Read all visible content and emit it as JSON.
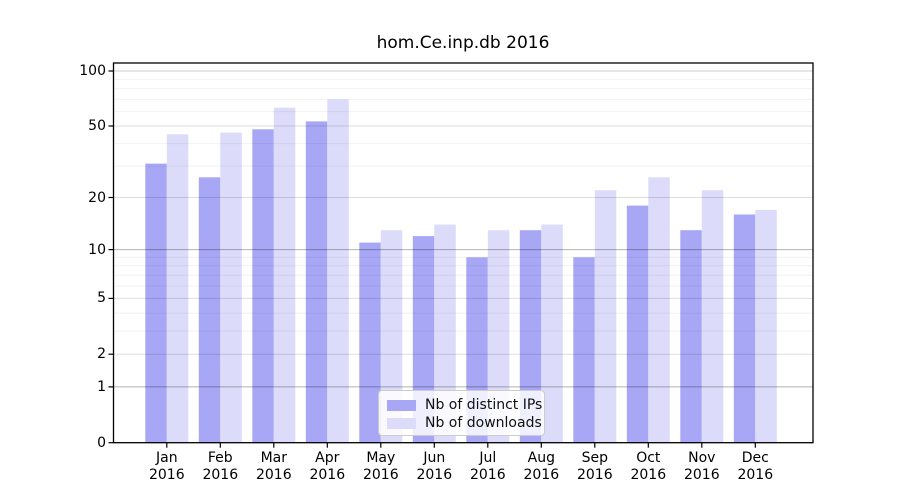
{
  "page": {
    "background": "#ffffff"
  },
  "chart_data": {
    "type": "bar",
    "title": "hom.Ce.inp.db 2016",
    "categories": [
      "Jan",
      "Feb",
      "Mar",
      "Apr",
      "May",
      "Jun",
      "Jul",
      "Aug",
      "Sep",
      "Oct",
      "Nov",
      "Dec"
    ],
    "category_year": "2016",
    "series": [
      {
        "name": "Nb of distinct IPs",
        "color": "#a7a7f5",
        "values": [
          31,
          26,
          48,
          53,
          11,
          12,
          9,
          13,
          9,
          18,
          13,
          16
        ]
      },
      {
        "name": "Nb of downloads",
        "color": "#dcdcfa",
        "values": [
          45,
          46,
          63,
          70,
          13,
          14,
          13,
          14,
          22,
          26,
          22,
          17
        ]
      }
    ],
    "xlabel": "",
    "ylabel": "",
    "yscale": "log1p",
    "ylim": [
      0,
      110
    ],
    "y_tick_labels": [
      "0",
      "1",
      "2",
      "5",
      "10",
      "20",
      "50",
      "100"
    ],
    "y_major_ticks": [
      0,
      1,
      2,
      5,
      10,
      20,
      50,
      100
    ],
    "y_minor_ticks": [
      3,
      4,
      6,
      7,
      8,
      9,
      30,
      40,
      60,
      70,
      80,
      90
    ],
    "grid": true,
    "legend_position": "lower center inside",
    "spine_color": "#000000"
  }
}
